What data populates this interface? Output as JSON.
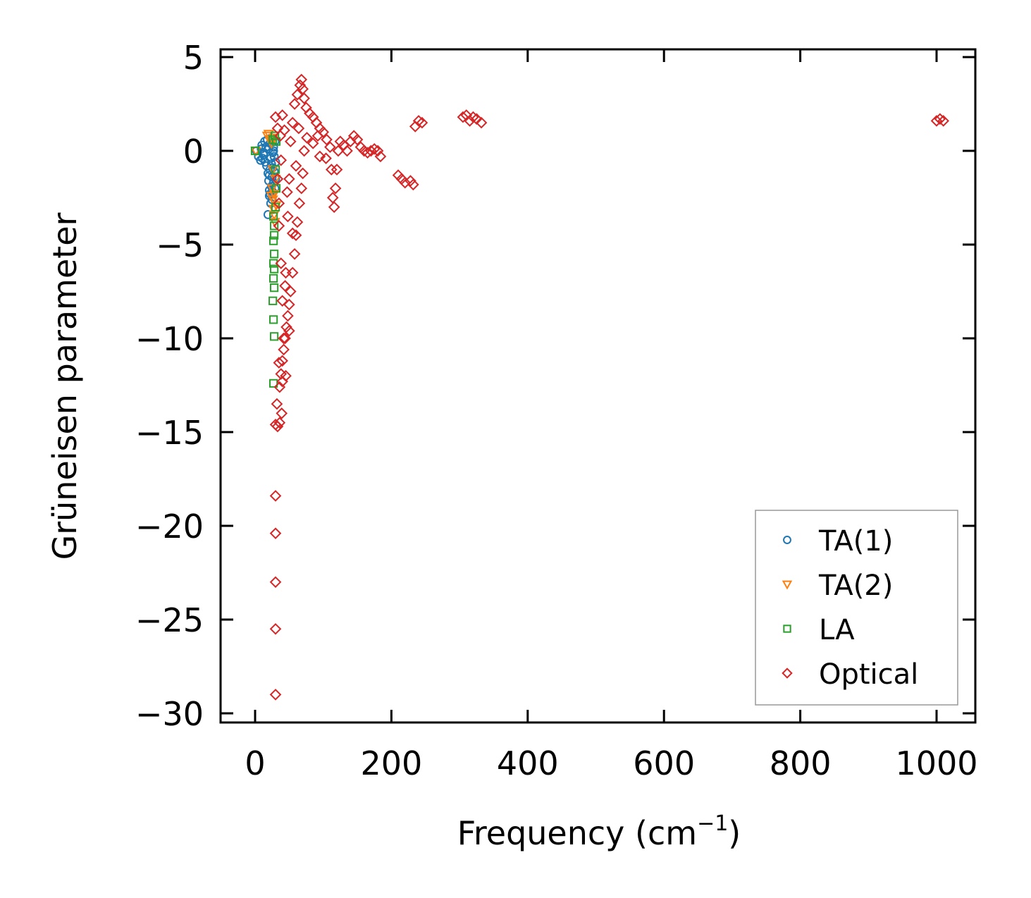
{
  "chart_data": {
    "type": "scatter",
    "title": "",
    "xlabel": "Frequency (cm",
    "xlabel_sup": "−1",
    "xlabel_end": ")",
    "ylabel": "Grüneisen parameter",
    "xlim": [
      -25,
      1060
    ],
    "ylim": [
      -30.5,
      5.5
    ],
    "xticks": [
      0,
      200,
      400,
      600,
      800,
      1000
    ],
    "xtick_labels": [
      "0",
      "200",
      "400",
      "600",
      "800",
      "1000"
    ],
    "yticks": [
      5,
      0,
      -5,
      -10,
      -15,
      -20,
      -25,
      -30
    ],
    "ytick_labels": [
      "5",
      "0",
      "−5",
      "−10",
      "−15",
      "−20",
      "−25",
      "−30"
    ],
    "legend_position": "lower-right",
    "series": [
      {
        "name": "TA(1)",
        "marker": "circle",
        "color": "#1f77b4",
        "points": [
          [
            2,
            0
          ],
          [
            5,
            -0.3
          ],
          [
            8,
            -0.5
          ],
          [
            10,
            0.3
          ],
          [
            12,
            -0.2
          ],
          [
            14,
            0.5
          ],
          [
            15,
            -0.6
          ],
          [
            16,
            0.2
          ],
          [
            17,
            -0.8
          ],
          [
            18,
            0.6
          ],
          [
            19,
            -1.2
          ],
          [
            20,
            0.1
          ],
          [
            20,
            -1.6
          ],
          [
            21,
            -2.1
          ],
          [
            21,
            -2.4
          ],
          [
            22,
            0.4
          ],
          [
            22,
            -1.0
          ],
          [
            23,
            -0.4
          ],
          [
            24,
            -1.9
          ],
          [
            24,
            0.7
          ],
          [
            25,
            -1.4
          ],
          [
            25,
            -2.6
          ],
          [
            26,
            -0.9
          ],
          [
            26,
            -2.2
          ],
          [
            27,
            0.2
          ],
          [
            27,
            -1.7
          ],
          [
            28,
            -0.3
          ],
          [
            28,
            -1.1
          ],
          [
            29,
            0.5
          ],
          [
            29,
            -2.0
          ],
          [
            30,
            -0.6
          ],
          [
            30,
            -1.5
          ],
          [
            19,
            -3.4
          ],
          [
            23,
            -2.8
          ],
          [
            26,
            -0.1
          ],
          [
            27,
            0.0
          ],
          [
            13,
            -0.1
          ],
          [
            11,
            -0.4
          ],
          [
            9,
            0.1
          ],
          [
            24,
            -0.7
          ],
          [
            21,
            -1.3
          ],
          [
            22,
            -2.3
          ]
        ]
      },
      {
        "name": "TA(2)",
        "marker": "triangle-down",
        "color": "#ff7f0e",
        "points": [
          [
            1,
            0
          ],
          [
            18,
            0.8
          ],
          [
            20,
            0.9
          ],
          [
            22,
            0.6
          ],
          [
            24,
            0.4
          ],
          [
            25,
            -2.0
          ],
          [
            26,
            -2.6
          ],
          [
            27,
            -3.1
          ],
          [
            28,
            -2.3
          ],
          [
            29,
            -3.8
          ],
          [
            30,
            -1.5
          ],
          [
            31,
            -2.9
          ],
          [
            27,
            0.7
          ],
          [
            26,
            -1.0
          ],
          [
            28,
            -3.4
          ],
          [
            24,
            -2.4
          ]
        ]
      },
      {
        "name": "LA",
        "marker": "square",
        "color": "#2ca02c",
        "points": [
          [
            0,
            0
          ],
          [
            26,
            0.6
          ],
          [
            27,
            -3.5
          ],
          [
            28,
            -4.0
          ],
          [
            28,
            -4.5
          ],
          [
            27,
            -4.8
          ],
          [
            28,
            -5.5
          ],
          [
            27,
            -6.0
          ],
          [
            28,
            -6.3
          ],
          [
            27,
            -6.8
          ],
          [
            28,
            -7.3
          ],
          [
            26,
            -8.0
          ],
          [
            27,
            -9.0
          ],
          [
            28,
            -9.9
          ],
          [
            27,
            -12.4
          ],
          [
            30,
            -1.0
          ],
          [
            31,
            -2.0
          ],
          [
            30,
            -3.0
          ],
          [
            31,
            0.5
          ],
          [
            29,
            0.8
          ]
        ]
      },
      {
        "name": "Optical",
        "marker": "diamond",
        "color": "#d62728",
        "points": [
          [
            30,
            -29.0
          ],
          [
            30,
            -25.5
          ],
          [
            30,
            -23.0
          ],
          [
            30,
            -20.4
          ],
          [
            30,
            -18.4
          ],
          [
            30,
            -14.6
          ],
          [
            33,
            -14.7
          ],
          [
            36,
            -14.5
          ],
          [
            39,
            -14.0
          ],
          [
            32,
            -13.5
          ],
          [
            36,
            -12.6
          ],
          [
            38,
            -11.9
          ],
          [
            40,
            -11.2
          ],
          [
            42,
            -10.6
          ],
          [
            44,
            -10.0
          ],
          [
            46,
            -9.4
          ],
          [
            48,
            -8.8
          ],
          [
            50,
            -8.2
          ],
          [
            52,
            -7.5
          ],
          [
            55,
            -6.5
          ],
          [
            58,
            -5.5
          ],
          [
            60,
            -4.5
          ],
          [
            62,
            -3.8
          ],
          [
            65,
            -2.8
          ],
          [
            68,
            -2.0
          ],
          [
            70,
            -1.2
          ],
          [
            72,
            0
          ],
          [
            35,
            -4.0
          ],
          [
            38,
            -6.0
          ],
          [
            40,
            -8.0
          ],
          [
            42,
            -10.0
          ],
          [
            45,
            -6.5
          ],
          [
            48,
            -3.5
          ],
          [
            50,
            -1.5
          ],
          [
            52,
            0.5
          ],
          [
            55,
            1.5
          ],
          [
            58,
            2.5
          ],
          [
            62,
            3.0
          ],
          [
            66,
            3.5
          ],
          [
            68,
            3.8
          ],
          [
            70,
            3.3
          ],
          [
            72,
            2.8
          ],
          [
            75,
            2.3
          ],
          [
            80,
            2.0
          ],
          [
            85,
            1.8
          ],
          [
            90,
            1.5
          ],
          [
            95,
            1.2
          ],
          [
            100,
            1.0
          ],
          [
            105,
            0.6
          ],
          [
            110,
            0.2
          ],
          [
            112,
            -1.0
          ],
          [
            114,
            -2.5
          ],
          [
            116,
            -3.0
          ],
          [
            118,
            -2.0
          ],
          [
            120,
            -1.0
          ],
          [
            122,
            0
          ],
          [
            125,
            0.5
          ],
          [
            130,
            0.3
          ],
          [
            135,
            0
          ],
          [
            140,
            0.5
          ],
          [
            145,
            0.8
          ],
          [
            150,
            0.6
          ],
          [
            155,
            0.2
          ],
          [
            160,
            0
          ],
          [
            165,
            -0.1
          ],
          [
            170,
            0
          ],
          [
            175,
            0.1
          ],
          [
            180,
            0
          ],
          [
            184,
            -0.3
          ],
          [
            210,
            -1.3
          ],
          [
            215,
            -1.5
          ],
          [
            220,
            -1.7
          ],
          [
            228,
            -1.6
          ],
          [
            232,
            -1.8
          ],
          [
            235,
            1.3
          ],
          [
            240,
            1.6
          ],
          [
            245,
            1.5
          ],
          [
            305,
            1.8
          ],
          [
            310,
            1.9
          ],
          [
            315,
            1.6
          ],
          [
            320,
            1.8
          ],
          [
            325,
            1.7
          ],
          [
            332,
            1.5
          ],
          [
            1000,
            1.6
          ],
          [
            1005,
            1.7
          ],
          [
            1010,
            1.6
          ],
          [
            45,
            -12.0
          ],
          [
            50,
            -9.6
          ],
          [
            55,
            -4.4
          ],
          [
            35,
            -11.3
          ],
          [
            40,
            -12.3
          ],
          [
            44,
            -7.2
          ],
          [
            47,
            -2.2
          ],
          [
            33,
            -1.5
          ],
          [
            35,
            -2.8
          ],
          [
            37,
            0.8
          ],
          [
            40,
            1.9
          ],
          [
            43,
            1.1
          ],
          [
            60,
            -0.8
          ],
          [
            64,
            1.2
          ],
          [
            76,
            0.7
          ],
          [
            85,
            0.4
          ],
          [
            95,
            -0.3
          ],
          [
            30,
            1.8
          ],
          [
            33,
            1.2
          ],
          [
            38,
            -0.5
          ],
          [
            92,
            0.8
          ],
          [
            104,
            -0.4
          ]
        ]
      }
    ]
  }
}
